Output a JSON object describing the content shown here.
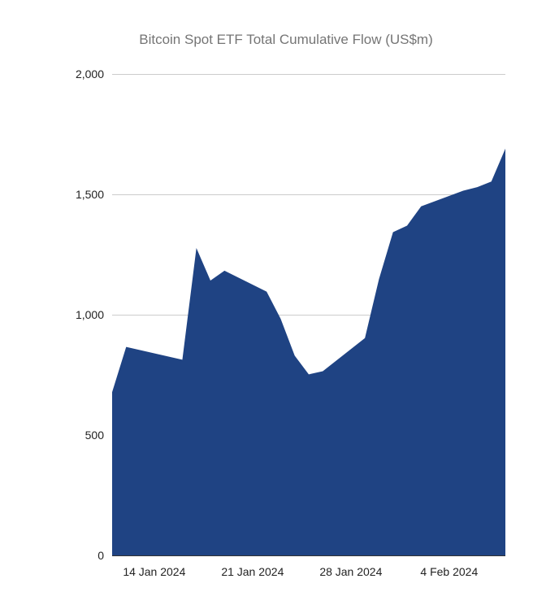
{
  "chart_data": {
    "type": "area",
    "title": "Bitcoin Spot ETF Total Cumulative Flow (US$m)",
    "xlabel": "",
    "ylabel": "",
    "ylim": [
      0,
      2000
    ],
    "yticks": [
      0,
      500,
      1000,
      1500,
      2000
    ],
    "ytick_labels": [
      "0",
      "500",
      "1,000",
      "1,500",
      "2,000"
    ],
    "xlim": [
      "2024-01-11",
      "2024-02-08"
    ],
    "xticks": [
      "2024-01-14",
      "2024-01-21",
      "2024-01-28",
      "2024-02-04"
    ],
    "xtick_labels": [
      "14 Jan 2024",
      "21 Jan 2024",
      "28 Jan 2024",
      "4 Feb 2024"
    ],
    "grid": true,
    "legend": "none",
    "colors": {
      "area": "#1f4383",
      "grid": "#cccccc",
      "title": "#757575"
    },
    "series": [
      {
        "x": [
          "2024-01-11",
          "2024-01-12",
          "2024-01-16",
          "2024-01-17",
          "2024-01-18",
          "2024-01-19",
          "2024-01-22",
          "2024-01-23",
          "2024-01-24",
          "2024-01-25",
          "2024-01-26",
          "2024-01-29",
          "2024-01-30",
          "2024-01-31",
          "2024-02-01",
          "2024-02-02",
          "2024-02-05",
          "2024-02-06",
          "2024-02-07",
          "2024-02-08"
        ],
        "values": [
          678,
          866,
          813,
          1277,
          1142,
          1183,
          1096,
          983,
          830,
          752,
          765,
          903,
          1148,
          1343,
          1370,
          1450,
          1515,
          1530,
          1553,
          1690
        ]
      }
    ]
  }
}
